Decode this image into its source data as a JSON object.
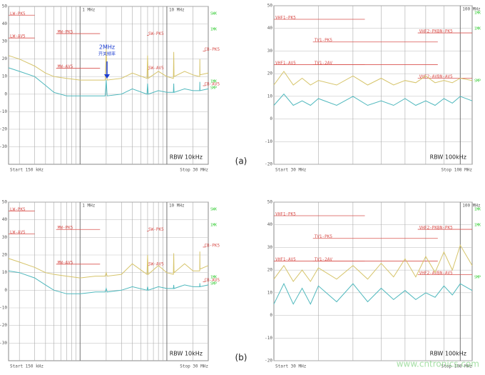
{
  "chart_data": [
    {
      "type": "line",
      "xscale": "log",
      "xlim": [
        0.15,
        30
      ],
      "ylim": [
        -40,
        50
      ],
      "yticks": [
        50,
        40,
        30,
        20,
        10,
        0,
        -10,
        -20,
        -30
      ],
      "xticks": [
        {
          "value": 1,
          "label": "1 MHz"
        },
        {
          "value": 10,
          "label": "10 MHz"
        }
      ],
      "xminor": [
        0.2,
        0.3,
        0.4,
        0.5,
        0.6,
        0.7,
        0.8,
        0.9,
        2,
        3,
        4,
        5,
        6,
        7,
        8,
        9,
        20
      ],
      "start": "Start 150 kHz",
      "stop": "Stop 30 MHz",
      "rbw": "RBW 10kHz",
      "panel": "(a)",
      "annotation": "2MHz",
      "annotation_sub": "开关频率",
      "side_labels": [
        "SWK",
        "1MK",
        "1MK",
        "SMP"
      ],
      "x": [
        0.15,
        0.2,
        0.3,
        0.4,
        0.5,
        0.7,
        1,
        1.5,
        1.95,
        2,
        2.05,
        3,
        4,
        5.9,
        6,
        6.1,
        8,
        10,
        11.9,
        12,
        12.1,
        16,
        20,
        23.9,
        24,
        24.1,
        30
      ],
      "series": [
        {
          "color": "#d6c46a",
          "values": [
            22,
            20,
            16,
            12,
            10,
            9,
            8,
            8,
            8,
            26,
            8,
            9,
            12,
            9,
            22,
            9,
            13,
            10,
            9,
            24,
            10,
            13,
            11,
            10,
            20,
            11,
            12
          ]
        },
        {
          "color": "#4fb8bd",
          "values": [
            15,
            13,
            10,
            5,
            1,
            -1,
            -1,
            -1,
            -1,
            8,
            -1,
            0,
            3,
            0,
            6,
            0,
            2,
            1,
            1,
            6,
            1,
            3,
            2,
            2,
            7,
            2,
            3
          ]
        }
      ],
      "limits": [
        {
          "label": "LW-PK5",
          "x": [
            0.15,
            0.3
          ],
          "value": 45
        },
        {
          "label": "LW-AV5",
          "x": [
            0.15,
            0.3
          ],
          "value": 32
        },
        {
          "label": "MW-PK5",
          "x": [
            0.53,
            1.7
          ],
          "value": 34.5
        },
        {
          "label": "MW-AV5",
          "x": [
            0.53,
            1.7
          ],
          "value": 14.8
        },
        {
          "label": "SW-PK5",
          "x": [
            5.9,
            6.2
          ],
          "value": 33.5
        },
        {
          "label": "SW-AV5",
          "x": [
            5.9,
            6.2
          ],
          "value": 14
        },
        {
          "label": "CB-PK5",
          "x": [
            26,
            28
          ],
          "value": 24.5
        },
        {
          "label": "CB-AV5",
          "x": [
            26,
            28
          ],
          "value": 4.8
        }
      ]
    },
    {
      "type": "line",
      "xscale": "log",
      "xlim": [
        30,
        108
      ],
      "ylim": [
        -20,
        50
      ],
      "yticks": [
        50,
        40,
        30,
        20,
        10,
        0,
        -10,
        -20
      ],
      "xticks": [
        {
          "value": 100,
          "label": "100 MHz"
        }
      ],
      "xminor": [
        40,
        50,
        60,
        70,
        80,
        90
      ],
      "start": "Start 30 MHz",
      "stop": "Stop 108 MHz",
      "rbw": "RBW 100kHz",
      "side_labels": [
        "1MK",
        "1MK",
        "SMP"
      ],
      "x": [
        30,
        32,
        34,
        36,
        38,
        40,
        45,
        50,
        55,
        60,
        65,
        70,
        75,
        80,
        85,
        90,
        95,
        100,
        108
      ],
      "series": [
        {
          "color": "#d6c46a",
          "values": [
            15,
            21,
            15,
            18,
            15,
            17,
            15,
            19,
            15,
            18,
            15,
            17,
            16,
            19,
            16,
            17,
            16,
            18,
            17
          ]
        },
        {
          "color": "#4fb8bd",
          "values": [
            6,
            11,
            6,
            8,
            6,
            9,
            6,
            10,
            6,
            8,
            6,
            9,
            6,
            8,
            6,
            9,
            7,
            10,
            8
          ]
        }
      ],
      "limits": [
        {
          "label": "VHF1-PK5",
          "x": [
            30,
            54
          ],
          "value": 44
        },
        {
          "label": "VHF2-PKBN-PK5",
          "x": [
            76,
            108
          ],
          "value": 38
        },
        {
          "label": "TV1-PK5",
          "x": [
            38.6,
            86.5
          ],
          "value": 34
        },
        {
          "label": "VHF1-AV5",
          "x": [
            30,
            54
          ],
          "value": 24
        },
        {
          "label": "TV1-2AV",
          "x": [
            38.6,
            86.5
          ],
          "value": 24
        },
        {
          "label": "VHF2-AVBN-AV5",
          "x": [
            76,
            108
          ],
          "value": 18
        }
      ]
    },
    {
      "type": "line",
      "xscale": "log",
      "xlim": [
        0.15,
        30
      ],
      "ylim": [
        -40,
        50
      ],
      "yticks": [
        50,
        40,
        30,
        20,
        10,
        0,
        -10,
        -20,
        -30
      ],
      "xticks": [
        {
          "value": 1,
          "label": "1 MHz"
        },
        {
          "value": 10,
          "label": "10 MHz"
        }
      ],
      "xminor": [
        0.2,
        0.3,
        0.4,
        0.5,
        0.6,
        0.7,
        0.8,
        0.9,
        2,
        3,
        4,
        5,
        6,
        7,
        8,
        9,
        20
      ],
      "start": "Start 150 kHz",
      "stop": "Stop 30 MHz",
      "rbw": "RBW 10kHz",
      "panel": "(b)",
      "side_labels": [
        "SWK",
        "1MK",
        "1MK",
        "SMP"
      ],
      "x": [
        0.15,
        0.2,
        0.3,
        0.4,
        0.5,
        0.7,
        1,
        1.5,
        1.95,
        2,
        2.05,
        3,
        4,
        5.9,
        6,
        6.1,
        8,
        10,
        11.9,
        12,
        12.1,
        16,
        20,
        23.9,
        24,
        24.1,
        30
      ],
      "series": [
        {
          "color": "#d6c46a",
          "values": [
            18,
            16,
            13,
            10,
            9,
            8,
            7,
            8,
            8,
            10,
            8,
            9,
            15,
            9,
            20,
            9,
            14,
            10,
            9,
            21,
            10,
            15,
            11,
            11,
            22,
            12,
            14
          ]
        },
        {
          "color": "#4fb8bd",
          "values": [
            11,
            10,
            7,
            3,
            0,
            -2,
            -2,
            -1,
            -1,
            1,
            -1,
            0,
            2,
            0,
            2,
            0,
            2,
            1,
            1,
            3,
            1,
            3,
            2,
            2,
            4,
            2,
            3
          ]
        }
      ],
      "limits": [
        {
          "label": "LW-PK5",
          "x": [
            0.15,
            0.3
          ],
          "value": 45
        },
        {
          "label": "LW-AV5",
          "x": [
            0.15,
            0.3
          ],
          "value": 32
        },
        {
          "label": "MW-PK5",
          "x": [
            0.53,
            1.7
          ],
          "value": 34.5
        },
        {
          "label": "MW-AV5",
          "x": [
            0.53,
            1.7
          ],
          "value": 14.8
        },
        {
          "label": "SW-PK5",
          "x": [
            5.9,
            6.2
          ],
          "value": 33.5
        },
        {
          "label": "SW-AV5",
          "x": [
            5.9,
            6.2
          ],
          "value": 14
        },
        {
          "label": "CB-PK5",
          "x": [
            26,
            28
          ],
          "value": 24.5
        },
        {
          "label": "CB-AV5",
          "x": [
            26,
            28
          ],
          "value": 4.8
        }
      ]
    },
    {
      "type": "line",
      "xscale": "log",
      "xlim": [
        30,
        108
      ],
      "ylim": [
        -20,
        50
      ],
      "yticks": [
        50,
        40,
        30,
        20,
        10,
        0,
        -10,
        -20
      ],
      "xticks": [
        {
          "value": 100,
          "label": "100 MHz"
        }
      ],
      "xminor": [
        40,
        50,
        60,
        70,
        80,
        90
      ],
      "start": "Start 30 MHz",
      "stop": "Stop 108 MHz",
      "rbw": "RBW 100kHz",
      "side_labels": [
        "1MK",
        "1MK",
        "SMP"
      ],
      "watermark": "www.cntronics.com",
      "x": [
        30,
        32,
        34,
        36,
        38,
        40,
        45,
        50,
        55,
        60,
        65,
        70,
        75,
        80,
        85,
        90,
        95,
        100,
        108
      ],
      "series": [
        {
          "color": "#d6c46a",
          "values": [
            16,
            22,
            15,
            20,
            15,
            21,
            16,
            22,
            16,
            23,
            17,
            25,
            17,
            26,
            19,
            28,
            20,
            31,
            22
          ]
        },
        {
          "color": "#4fb8bd",
          "values": [
            5,
            14,
            5,
            12,
            5,
            13,
            6,
            14,
            6,
            12,
            7,
            11,
            7,
            10,
            8,
            13,
            9,
            14,
            11
          ]
        }
      ],
      "limits": [
        {
          "label": "VHF1-PK5",
          "x": [
            30,
            54
          ],
          "value": 44
        },
        {
          "label": "VHF2-PKBN-PK5",
          "x": [
            76,
            108
          ],
          "value": 38
        },
        {
          "label": "TV1-PK5",
          "x": [
            38.6,
            86.5
          ],
          "value": 34
        },
        {
          "label": "VHF1-AV5",
          "x": [
            30,
            54
          ],
          "value": 24
        },
        {
          "label": "TV1-2AV",
          "x": [
            38.6,
            86.5
          ],
          "value": 24
        },
        {
          "label": "VHF2-AVBN-AV5",
          "x": [
            76,
            108
          ],
          "value": 18
        }
      ]
    }
  ]
}
